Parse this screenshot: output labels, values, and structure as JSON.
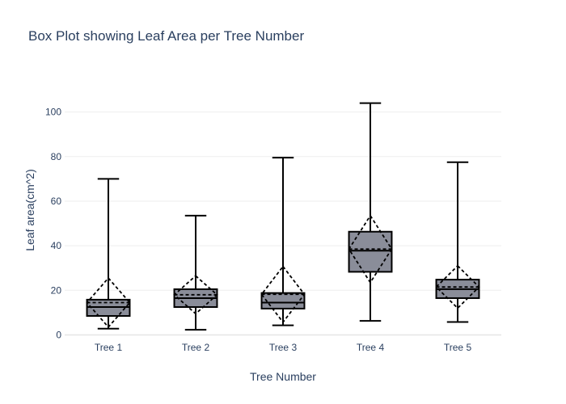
{
  "chart_data": {
    "type": "box",
    "title": "Box Plot showing Leaf Area per Tree Number",
    "xlabel": "Tree Number",
    "ylabel": "Leaf area(cm^2)",
    "ylim": [
      -2,
      114
    ],
    "yticks": [
      0,
      20,
      40,
      60,
      80,
      100
    ],
    "categories": [
      "Tree 1",
      "Tree 2",
      "Tree 3",
      "Tree 4",
      "Tree 5"
    ],
    "boxes": [
      {
        "min": 2.8,
        "q1": 8.5,
        "median": 12.5,
        "q3": 15.8,
        "max": 70.0,
        "mean": 14.5,
        "sd": 11.0
      },
      {
        "min": 2.3,
        "q1": 12.5,
        "median": 16.5,
        "q3": 20.5,
        "max": 53.5,
        "mean": 18.0,
        "sd": 8.5
      },
      {
        "min": 4.3,
        "q1": 11.8,
        "median": 14.5,
        "q3": 18.8,
        "max": 79.5,
        "mean": 18.2,
        "sd": 12.5
      },
      {
        "min": 6.3,
        "q1": 28.3,
        "median": 37.8,
        "q3": 46.3,
        "max": 104.0,
        "mean": 38.5,
        "sd": 15.0
      },
      {
        "min": 5.8,
        "q1": 16.5,
        "median": 20.5,
        "q3": 24.8,
        "max": 77.5,
        "mean": 21.5,
        "sd": 9.5
      }
    ],
    "box_fill": "#8a8d99",
    "box_line": "#000000",
    "grid": true,
    "legend": false
  }
}
